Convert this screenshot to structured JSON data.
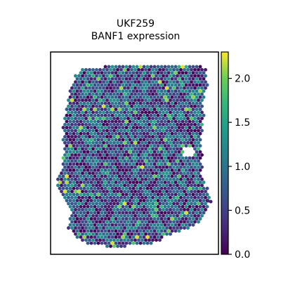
{
  "chart_data": {
    "type": "scatter",
    "title": "UKF259",
    "subtitle": "BANF1 expression",
    "xlabel": "",
    "ylabel": "",
    "spot_shape": "hexagonal grid",
    "colormap": "viridis",
    "colorbar": {
      "range": [
        0.0,
        2.3
      ],
      "ticks": [
        0.0,
        0.5,
        1.0,
        1.5,
        2.0
      ],
      "tick_labels": [
        "0.0",
        "0.5",
        "1.0",
        "1.5",
        "2.0"
      ]
    },
    "value_range": [
      0.0,
      2.3
    ],
    "grid": false,
    "legend": "colorbar-right",
    "colors": {
      "low": "#440154",
      "mid": "#21918c",
      "high": "#fde725",
      "frame": "#000000"
    }
  }
}
